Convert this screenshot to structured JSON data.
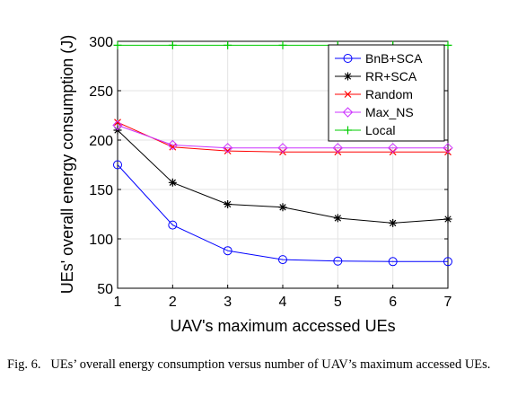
{
  "chart_data": {
    "type": "line",
    "x": [
      1,
      2,
      3,
      4,
      5,
      6,
      7
    ],
    "xlabel": "UAV's maximum accessed UEs",
    "ylabel": "UEs' overall energy consumption (J)",
    "xlim": [
      1,
      7
    ],
    "ylim": [
      50,
      300
    ],
    "xticks": [
      "1",
      "2",
      "3",
      "4",
      "5",
      "6",
      "7"
    ],
    "yticks": [
      "50",
      "100",
      "150",
      "200",
      "250",
      "300"
    ],
    "grid": true,
    "legend_position": "top-right",
    "series": [
      {
        "name": "BnB+SCA",
        "color": "#0000ff",
        "marker": "circle",
        "values": [
          175,
          114,
          88,
          79,
          77.5,
          77,
          77
        ]
      },
      {
        "name": "RR+SCA",
        "color": "#000000",
        "marker": "star",
        "values": [
          210,
          157,
          135,
          132,
          121,
          116,
          120
        ]
      },
      {
        "name": "Random",
        "color": "#ff0000",
        "marker": "x",
        "values": [
          218,
          193,
          189,
          188,
          188,
          188,
          188
        ]
      },
      {
        "name": "Max_NS",
        "color": "#cc33ff",
        "marker": "diamond",
        "values": [
          215,
          195,
          192,
          192,
          192,
          192,
          192
        ]
      },
      {
        "name": "Local",
        "color": "#00cc00",
        "marker": "plus",
        "values": [
          296,
          296,
          296,
          296,
          296,
          296,
          296
        ]
      }
    ]
  },
  "caption": {
    "label": "Fig. 6.",
    "text": "UEs’ overall energy consumption versus number of UAV’s maximum accessed UEs."
  }
}
